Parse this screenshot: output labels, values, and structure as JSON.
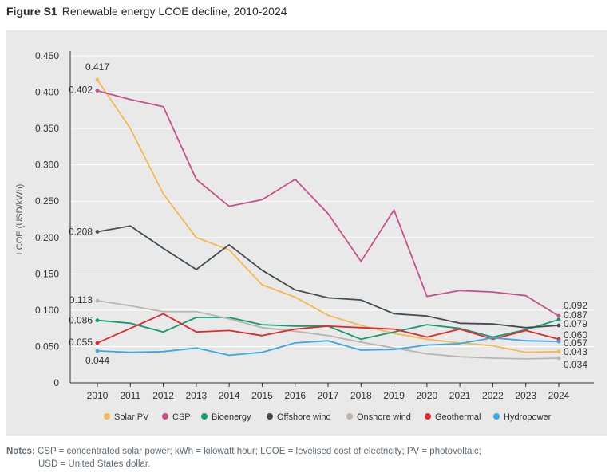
{
  "figure": {
    "label": "Figure S1",
    "title": "Renewable energy LCOE decline, 2010-2024"
  },
  "notes": {
    "label": "Notes:",
    "line1": "CSP = concentrated solar power; kWh = kilowatt hour; LCOE = levelised cost of electricity; PV = photovoltaic;",
    "line2": "USD = United States dollar."
  },
  "chart_data": {
    "type": "line",
    "title": "Renewable energy LCOE decline, 2010-2024",
    "xlabel": "",
    "ylabel": "LCOE (USD/kWh)",
    "ylim": [
      0,
      0.45
    ],
    "yticks": [
      "0",
      "0.050",
      "0.100",
      "0.150",
      "0.200",
      "0.250",
      "0.300",
      "0.350",
      "0.400",
      "0.450"
    ],
    "grid": true,
    "legend_position": "bottom",
    "x": [
      2010,
      2011,
      2012,
      2013,
      2014,
      2015,
      2016,
      2017,
      2018,
      2019,
      2020,
      2021,
      2022,
      2023,
      2024
    ],
    "series": [
      {
        "name": "Solar PV",
        "color": "#f5b94d",
        "values": [
          0.417,
          0.35,
          0.26,
          0.2,
          0.183,
          0.135,
          0.118,
          0.093,
          0.079,
          0.068,
          0.06,
          0.055,
          0.051,
          0.042,
          0.043
        ],
        "start_label": "0.417",
        "end_label": "0.043"
      },
      {
        "name": "CSP",
        "color": "#c8508a",
        "values": [
          0.402,
          0.39,
          0.38,
          0.28,
          0.243,
          0.252,
          0.28,
          0.233,
          0.167,
          0.238,
          0.119,
          0.127,
          0.125,
          0.12,
          0.092
        ],
        "start_label": "0.402",
        "end_label": "0.092"
      },
      {
        "name": "Bioenergy",
        "color": "#139a73",
        "values": [
          0.086,
          0.082,
          0.07,
          0.09,
          0.09,
          0.08,
          0.078,
          0.078,
          0.06,
          0.07,
          0.08,
          0.075,
          0.063,
          0.073,
          0.087
        ],
        "start_label": "0.086",
        "end_label": "0.087"
      },
      {
        "name": "Offshore wind",
        "color": "#454b50",
        "values": [
          0.208,
          0.216,
          0.185,
          0.156,
          0.19,
          0.155,
          0.128,
          0.117,
          0.114,
          0.095,
          0.092,
          0.082,
          0.081,
          0.076,
          0.079
        ],
        "start_label": "0.208",
        "end_label": "0.079"
      },
      {
        "name": "Onshore wind",
        "color": "#b9b6ab",
        "values": [
          0.113,
          0.106,
          0.098,
          0.098,
          0.088,
          0.076,
          0.071,
          0.065,
          0.056,
          0.048,
          0.04,
          0.036,
          0.034,
          0.033,
          0.034
        ],
        "start_label": "0.113",
        "end_label": "0.034"
      },
      {
        "name": "Geothermal",
        "color": "#e2282e",
        "values": [
          0.055,
          0.075,
          0.095,
          0.07,
          0.072,
          0.065,
          0.074,
          0.078,
          0.076,
          0.074,
          0.063,
          0.074,
          0.06,
          0.072,
          0.06
        ],
        "start_label": "0.055",
        "end_label": "0.060"
      },
      {
        "name": "Hydropower",
        "color": "#3aa9e6",
        "values": [
          0.044,
          0.042,
          0.043,
          0.048,
          0.038,
          0.042,
          0.055,
          0.058,
          0.045,
          0.046,
          0.052,
          0.054,
          0.062,
          0.058,
          0.057
        ],
        "start_label": "0.044",
        "end_label": "0.057"
      }
    ]
  }
}
